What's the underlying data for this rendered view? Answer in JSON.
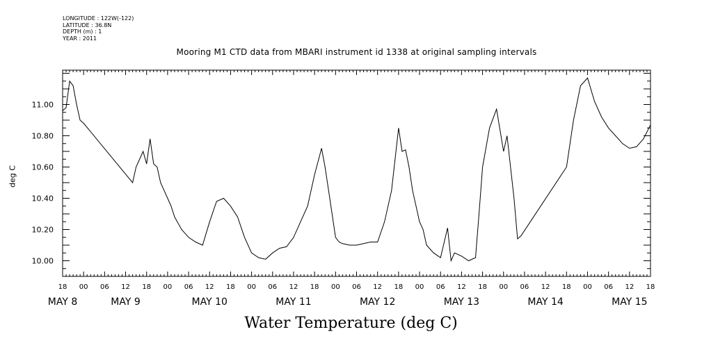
{
  "header": {
    "lines": [
      "LONGITUDE : 122W(-122)",
      "LATITUDE : 36.8N",
      "DEPTH (m) : 1",
      "YEAR : 2011"
    ]
  },
  "chart_data": {
    "type": "line",
    "title": "Mooring M1 CTD data from MBARI instrument id 1338 at original sampling intervals",
    "xlabel": "",
    "ylabel": "deg C",
    "bottom_title": "Water Temperature (deg C)",
    "xlim": [
      "2011-05-08 18:00",
      "2011-05-15 18:00"
    ],
    "ylim": [
      9.9,
      11.22
    ],
    "yticks": [
      10.0,
      10.2,
      10.4,
      10.6,
      10.8,
      11.0
    ],
    "ytick_labels": [
      "10.00",
      "10.20",
      "10.40",
      "10.60",
      "10.80",
      "11.00"
    ],
    "hour_tick_labels": [
      "18",
      "00",
      "06",
      "12",
      "18",
      "00",
      "06",
      "12",
      "18",
      "00",
      "06",
      "12",
      "18",
      "00",
      "06",
      "12",
      "18",
      "00",
      "06",
      "12",
      "18",
      "00",
      "06",
      "12",
      "18",
      "00",
      "06",
      "12",
      "18"
    ],
    "day_labels": [
      {
        "label": "MAY  8",
        "x": "2011-05-08 18:00"
      },
      {
        "label": "MAY  9",
        "x": "2011-05-09 12:00"
      },
      {
        "label": "MAY 10",
        "x": "2011-05-10 12:00"
      },
      {
        "label": "MAY 11",
        "x": "2011-05-11 12:00"
      },
      {
        "label": "MAY 12",
        "x": "2011-05-12 12:00"
      },
      {
        "label": "MAY 13",
        "x": "2011-05-13 12:00"
      },
      {
        "label": "MAY 14",
        "x": "2011-05-14 12:00"
      },
      {
        "label": "MAY 15",
        "x": "2011-05-15 12:00"
      }
    ],
    "grid": false,
    "series": [
      {
        "x": [
          "2011-05-08 18:00",
          "2011-05-08 19:00",
          "2011-05-08 20:00",
          "2011-05-08 21:00",
          "2011-05-08 22:00",
          "2011-05-08 23:00",
          "2011-05-09 00:00",
          "2011-05-09 14:00",
          "2011-05-09 15:00",
          "2011-05-09 17:00",
          "2011-05-09 18:00",
          "2011-05-09 19:00",
          "2011-05-09 20:00",
          "2011-05-09 21:00",
          "2011-05-09 22:00",
          "2011-05-09 23:00",
          "2011-05-10 00:00",
          "2011-05-10 01:00",
          "2011-05-10 02:00",
          "2011-05-10 04:00",
          "2011-05-10 06:00",
          "2011-05-10 08:00",
          "2011-05-10 10:00",
          "2011-05-10 12:00",
          "2011-05-10 14:00",
          "2011-05-10 16:00",
          "2011-05-10 18:00",
          "2011-05-10 20:00",
          "2011-05-10 22:00",
          "2011-05-11 00:00",
          "2011-05-11 02:00",
          "2011-05-11 04:00",
          "2011-05-11 06:00",
          "2011-05-11 08:00",
          "2011-05-11 10:00",
          "2011-05-11 12:00",
          "2011-05-11 14:00",
          "2011-05-11 16:00",
          "2011-05-11 18:00",
          "2011-05-11 20:00",
          "2011-05-11 21:00",
          "2011-05-11 22:00",
          "2011-05-11 23:00",
          "2011-05-12 00:00",
          "2011-05-12 01:00",
          "2011-05-12 02:00",
          "2011-05-12 04:00",
          "2011-05-12 06:00",
          "2011-05-12 08:00",
          "2011-05-12 10:00",
          "2011-05-12 12:00",
          "2011-05-12 14:00",
          "2011-05-12 16:00",
          "2011-05-12 18:00",
          "2011-05-12 19:00",
          "2011-05-12 20:00",
          "2011-05-12 21:00",
          "2011-05-12 22:00",
          "2011-05-12 23:00",
          "2011-05-13 00:00",
          "2011-05-13 01:00",
          "2011-05-13 02:00",
          "2011-05-13 04:00",
          "2011-05-13 06:00",
          "2011-05-13 08:00",
          "2011-05-13 09:00",
          "2011-05-13 10:00",
          "2011-05-13 12:00",
          "2011-05-13 14:00",
          "2011-05-13 16:00",
          "2011-05-13 17:00",
          "2011-05-13 18:00",
          "2011-05-13 20:00",
          "2011-05-13 22:00",
          "2011-05-14 00:00",
          "2011-05-14 01:00",
          "2011-05-14 02:00",
          "2011-05-14 03:00",
          "2011-05-14 04:00",
          "2011-05-14 05:00",
          "2011-05-14 18:00",
          "2011-05-14 20:00",
          "2011-05-14 22:00",
          "2011-05-15 00:00",
          "2011-05-15 02:00",
          "2011-05-15 04:00",
          "2011-05-15 06:00",
          "2011-05-15 08:00",
          "2011-05-15 10:00",
          "2011-05-15 12:00",
          "2011-05-15 14:00",
          "2011-05-15 16:00",
          "2011-05-15 18:00"
        ],
        "y": [
          10.96,
          10.98,
          11.15,
          11.12,
          11.0,
          10.9,
          10.88,
          10.5,
          10.6,
          10.7,
          10.62,
          10.78,
          10.62,
          10.6,
          10.5,
          10.45,
          10.4,
          10.35,
          10.28,
          10.2,
          10.15,
          10.12,
          10.1,
          10.25,
          10.38,
          10.4,
          10.35,
          10.28,
          10.15,
          10.05,
          10.02,
          10.01,
          10.05,
          10.08,
          10.09,
          10.15,
          10.25,
          10.35,
          10.55,
          10.72,
          10.6,
          10.45,
          10.3,
          10.15,
          10.12,
          10.11,
          10.1,
          10.1,
          10.11,
          10.12,
          10.12,
          10.25,
          10.45,
          10.85,
          10.7,
          10.71,
          10.6,
          10.45,
          10.35,
          10.25,
          10.2,
          10.1,
          10.05,
          10.02,
          10.21,
          10.0,
          10.05,
          10.03,
          10.0,
          10.02,
          10.3,
          10.6,
          10.85,
          10.97,
          10.7,
          10.8,
          10.6,
          10.4,
          10.14,
          10.16,
          10.6,
          10.9,
          11.12,
          11.17,
          11.02,
          10.92,
          10.85,
          10.8,
          10.75,
          10.72,
          10.73,
          10.78,
          10.87
        ]
      }
    ]
  }
}
